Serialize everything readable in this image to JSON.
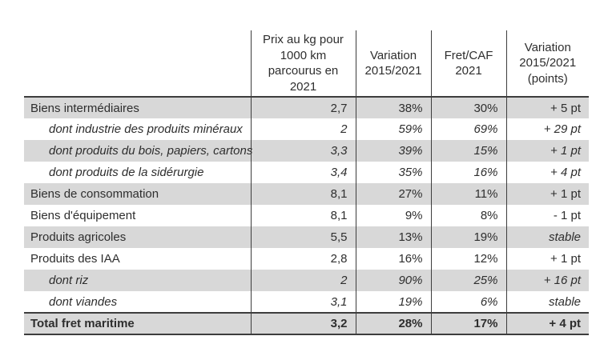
{
  "table": {
    "headers": {
      "label": "",
      "price": "Prix au kg pour 1000 km parcourus en 2021",
      "variation": "Variation 2015/2021",
      "fret": "Fret/CAF 2021",
      "points": "Variation 2015/2021 (points)"
    },
    "rows": [
      {
        "label": "Biens intermédiaires",
        "price": "2,7",
        "variation": "38%",
        "fret": "30%",
        "points": "+ 5 pt"
      },
      {
        "label": "dont industrie des produits minéraux",
        "price": "2",
        "variation": "59%",
        "fret": "69%",
        "points": "+ 29 pt"
      },
      {
        "label": "dont produits du bois, papiers, cartons",
        "price": "3,3",
        "variation": "39%",
        "fret": "15%",
        "points": "+ 1 pt"
      },
      {
        "label": "dont produits de la sidérurgie",
        "price": "3,4",
        "variation": "35%",
        "fret": "16%",
        "points": "+ 4 pt"
      },
      {
        "label": "Biens de consommation",
        "price": "8,1",
        "variation": "27%",
        "fret": "11%",
        "points": "+ 1 pt"
      },
      {
        "label": "Biens d'équipement",
        "price": "8,1",
        "variation": "9%",
        "fret": "8%",
        "points": "- 1 pt"
      },
      {
        "label": "Produits agricoles",
        "price": "5,5",
        "variation": "13%",
        "fret": "19%",
        "points": "stable"
      },
      {
        "label": "Produits des IAA",
        "price": "2,8",
        "variation": "16%",
        "fret": "12%",
        "points": "+ 1 pt"
      },
      {
        "label": "dont riz",
        "price": "2",
        "variation": "90%",
        "fret": "25%",
        "points": "+ 16 pt"
      },
      {
        "label": "dont viandes",
        "price": "3,1",
        "variation": "19%",
        "fret": "6%",
        "points": "stable"
      },
      {
        "label": "Total fret maritime",
        "price": "3,2",
        "variation": "28%",
        "fret": "17%",
        "points": "+ 4 pt"
      }
    ],
    "colors": {
      "stripe_gray": "#d8d8d8",
      "line_dark": "#3d3d3d",
      "text": "#2e2e2e"
    }
  }
}
